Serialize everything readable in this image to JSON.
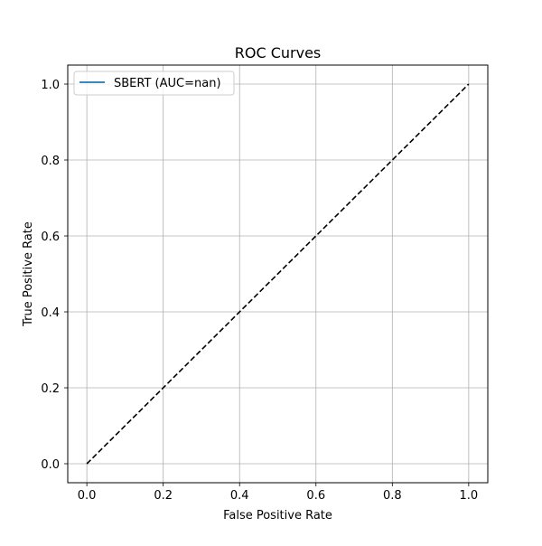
{
  "chart_data": {
    "type": "line",
    "title": "ROC Curves",
    "xlabel": "False Positive Rate",
    "ylabel": "True Positive Rate",
    "xlim": [
      -0.05,
      1.05
    ],
    "ylim": [
      -0.05,
      1.05
    ],
    "x_ticks": [
      0.0,
      0.2,
      0.4,
      0.6,
      0.8,
      1.0
    ],
    "x_tick_labels": [
      "0.0",
      "0.2",
      "0.4",
      "0.6",
      "0.8",
      "1.0"
    ],
    "y_ticks": [
      0.0,
      0.2,
      0.4,
      0.6,
      0.8,
      1.0
    ],
    "y_tick_labels": [
      "0.0",
      "0.2",
      "0.4",
      "0.6",
      "0.8",
      "1.0"
    ],
    "grid": true,
    "legend_position": "top-left",
    "series": [
      {
        "name": "SBERT (AUC=nan)",
        "color": "#1f77b4",
        "line_style": "solid",
        "x": [],
        "y": []
      },
      {
        "name": "",
        "color": "#000000",
        "line_style": "dashed",
        "x": [
          0,
          1
        ],
        "y": [
          0,
          1
        ]
      }
    ]
  }
}
